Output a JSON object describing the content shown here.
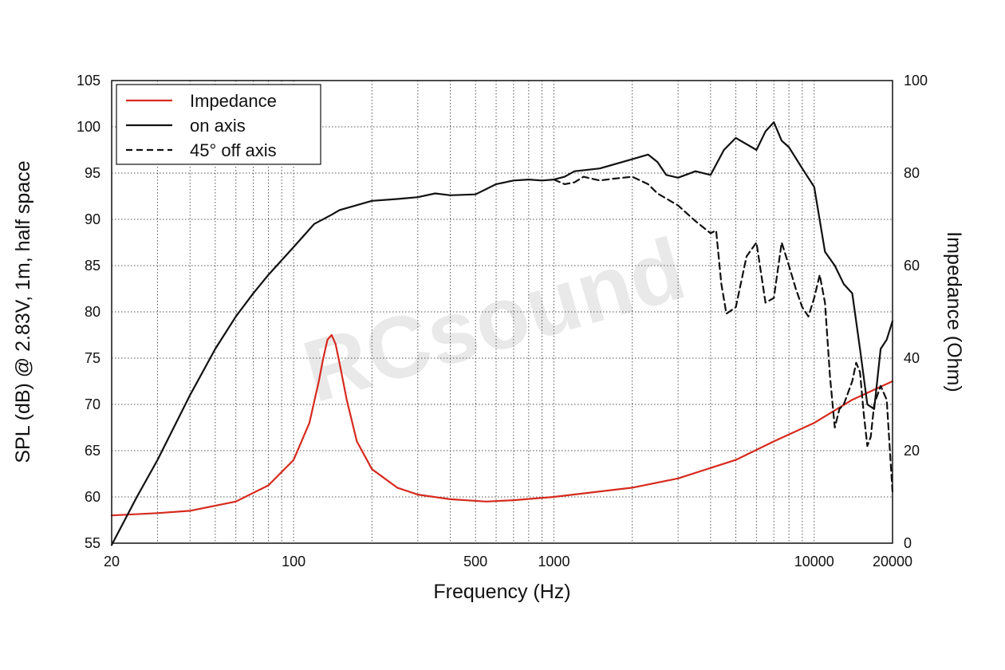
{
  "watermark": "RCsound",
  "chart_data": {
    "type": "line",
    "xlabel": "Frequency (Hz)",
    "ylabel": "SPL (dB) @ 2.83V, 1m, half space",
    "ylabel_right": "Impedance (Ohm)",
    "xscale": "log",
    "xlim": [
      20,
      20000
    ],
    "ylim": [
      55,
      105
    ],
    "ylim_right": [
      0,
      100
    ],
    "x_ticks": [
      20,
      100,
      500,
      1000,
      10000,
      20000
    ],
    "x_tick_labels": [
      "20",
      "100",
      "500",
      "1000",
      "10000",
      "20000"
    ],
    "y_ticks": [
      55,
      60,
      65,
      70,
      75,
      80,
      85,
      90,
      95,
      100,
      105
    ],
    "y_tick_labels": [
      "55",
      "60",
      "65",
      "70",
      "75",
      "80",
      "85",
      "90",
      "95",
      "100",
      "105"
    ],
    "y_right_ticks": [
      0,
      20,
      40,
      60,
      80,
      100
    ],
    "y_right_tick_labels": [
      "0",
      "20",
      "40",
      "60",
      "80",
      "100"
    ],
    "grid": true,
    "legend_position": "top-left",
    "series": [
      {
        "name": "Impedance",
        "axis": "right",
        "color": "#d62a1e",
        "style": "solid",
        "points": [
          [
            20,
            6
          ],
          [
            30,
            6.5
          ],
          [
            40,
            7
          ],
          [
            60,
            9
          ],
          [
            80,
            12.5
          ],
          [
            100,
            18
          ],
          [
            115,
            26
          ],
          [
            125,
            35
          ],
          [
            130,
            40
          ],
          [
            135,
            44
          ],
          [
            140,
            45
          ],
          [
            145,
            43
          ],
          [
            150,
            39
          ],
          [
            160,
            31
          ],
          [
            175,
            22
          ],
          [
            200,
            16
          ],
          [
            250,
            12
          ],
          [
            300,
            10.5
          ],
          [
            400,
            9.5
          ],
          [
            550,
            9
          ],
          [
            700,
            9.3
          ],
          [
            1000,
            10
          ],
          [
            2000,
            12
          ],
          [
            3000,
            14
          ],
          [
            5000,
            18
          ],
          [
            7000,
            22
          ],
          [
            10000,
            26
          ],
          [
            14000,
            31
          ],
          [
            20000,
            35
          ]
        ]
      },
      {
        "name": "on axis",
        "axis": "left",
        "color": "#111111",
        "style": "solid",
        "points": [
          [
            20,
            54.8
          ],
          [
            25,
            60
          ],
          [
            30,
            64
          ],
          [
            40,
            71
          ],
          [
            50,
            76
          ],
          [
            60,
            79.5
          ],
          [
            70,
            82
          ],
          [
            80,
            84
          ],
          [
            100,
            87
          ],
          [
            120,
            89.5
          ],
          [
            140,
            90.5
          ],
          [
            150,
            91
          ],
          [
            200,
            92
          ],
          [
            250,
            92.2
          ],
          [
            300,
            92.4
          ],
          [
            350,
            92.8
          ],
          [
            400,
            92.6
          ],
          [
            500,
            92.7
          ],
          [
            600,
            93.8
          ],
          [
            700,
            94.2
          ],
          [
            800,
            94.3
          ],
          [
            900,
            94.2
          ],
          [
            1000,
            94.3
          ],
          [
            1100,
            94.6
          ],
          [
            1200,
            95.2
          ],
          [
            1500,
            95.5
          ],
          [
            2000,
            96.5
          ],
          [
            2300,
            97
          ],
          [
            2500,
            96.2
          ],
          [
            2700,
            94.8
          ],
          [
            3000,
            94.5
          ],
          [
            3500,
            95.2
          ],
          [
            4000,
            94.8
          ],
          [
            4500,
            97.5
          ],
          [
            5000,
            98.8
          ],
          [
            6000,
            97.5
          ],
          [
            6500,
            99.5
          ],
          [
            7000,
            100.5
          ],
          [
            7500,
            98.5
          ],
          [
            8000,
            97.8
          ],
          [
            9000,
            95.5
          ],
          [
            10000,
            93.5
          ],
          [
            11000,
            86.5
          ],
          [
            12000,
            85
          ],
          [
            13000,
            83
          ],
          [
            14000,
            82
          ],
          [
            15000,
            76
          ],
          [
            16000,
            70
          ],
          [
            17000,
            69.5
          ],
          [
            18000,
            76
          ],
          [
            19000,
            77
          ],
          [
            20000,
            79
          ]
        ]
      },
      {
        "name": "45° off axis",
        "axis": "left",
        "color": "#111111",
        "style": "dashed",
        "points": [
          [
            1000,
            94.3
          ],
          [
            1100,
            93.8
          ],
          [
            1200,
            94
          ],
          [
            1300,
            94.6
          ],
          [
            1500,
            94.2
          ],
          [
            1700,
            94.4
          ],
          [
            2000,
            94.6
          ],
          [
            2300,
            93.8
          ],
          [
            2500,
            92.8
          ],
          [
            3000,
            91.5
          ],
          [
            3500,
            89.8
          ],
          [
            4000,
            88.5
          ],
          [
            4200,
            88.8
          ],
          [
            4400,
            83
          ],
          [
            4600,
            79.8
          ],
          [
            5000,
            80.5
          ],
          [
            5500,
            86
          ],
          [
            6000,
            87.5
          ],
          [
            6500,
            81
          ],
          [
            7000,
            81.5
          ],
          [
            7500,
            87.5
          ],
          [
            8000,
            85
          ],
          [
            8500,
            82.5
          ],
          [
            9000,
            80.5
          ],
          [
            9500,
            79.5
          ],
          [
            10000,
            81.5
          ],
          [
            10500,
            84
          ],
          [
            11000,
            81
          ],
          [
            11500,
            73
          ],
          [
            12000,
            67.5
          ],
          [
            12500,
            69.5
          ],
          [
            13000,
            70
          ],
          [
            14000,
            72.5
          ],
          [
            14500,
            74.5
          ],
          [
            15000,
            73.5
          ],
          [
            15500,
            69
          ],
          [
            16000,
            65.5
          ],
          [
            16500,
            66.5
          ],
          [
            17000,
            70
          ],
          [
            18000,
            72
          ],
          [
            19000,
            70.5
          ],
          [
            20000,
            60.5
          ]
        ]
      }
    ]
  }
}
